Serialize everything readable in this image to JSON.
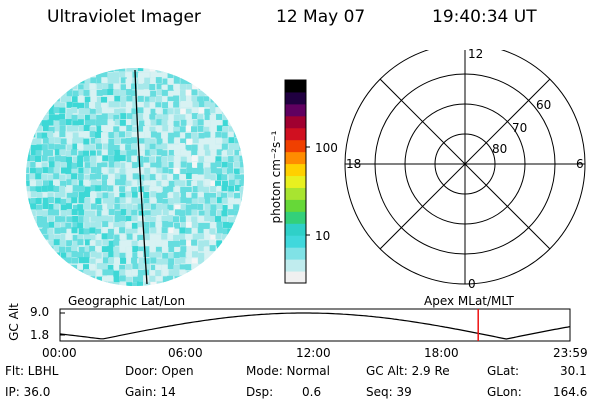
{
  "header": {
    "instrument": "Ultraviolet Imager",
    "date": "12 May 07",
    "time": "19:40:34 UT"
  },
  "colorbar": {
    "unit_label": "photon cm⁻²s⁻¹",
    "ticks": [
      {
        "label": "100",
        "value": 100
      },
      {
        "label": "10",
        "value": 10
      }
    ],
    "colors": [
      "#f0f0f0",
      "#c0ecee",
      "#80e2e6",
      "#40d8dc",
      "#2fd0c8",
      "#33d07a",
      "#66d838",
      "#a8e430",
      "#e8f020",
      "#ffd000",
      "#ff8c00",
      "#f04000",
      "#d01020",
      "#a00030",
      "#600060",
      "#200040",
      "#000000"
    ]
  },
  "left_panel": {
    "caption": "Geographic Lat/Lon",
    "image_colors": [
      "#f4f6f6",
      "#d8f2f3",
      "#a6e8ea",
      "#66dddf",
      "#3dd8d6"
    ]
  },
  "right_panel": {
    "caption": "Apex MLat/MLT",
    "mlt_labels": [
      {
        "label": "12",
        "pos": "top"
      },
      {
        "label": "6",
        "pos": "right"
      },
      {
        "label": "0",
        "pos": "bottom"
      },
      {
        "label": "18",
        "pos": "left"
      }
    ],
    "lat_labels": [
      "60",
      "70",
      "80"
    ]
  },
  "orbit_plot": {
    "ylabel": "GC Alt",
    "y_ticks": [
      "9.0",
      "1.8"
    ],
    "x_ticks": [
      "00:00",
      "06:00",
      "12:00",
      "18:00",
      "23:59"
    ],
    "marker_color": "#ee1111",
    "marker_time_hours": 19.68
  },
  "footer": {
    "flt": "Flt: LBHL",
    "door": "Door: Open",
    "mode": "Mode: Normal",
    "gc_alt": "GC Alt: 2.9 Re",
    "glat_label": "GLat:",
    "glat_value": "30.1",
    "ip": "IP: 36.0",
    "gain": "Gain: 14",
    "dsp_label": "Dsp:",
    "dsp_value": "0.6",
    "seq": "Seq: 39",
    "glon_label": "GLon:",
    "glon_value": "164.6"
  }
}
